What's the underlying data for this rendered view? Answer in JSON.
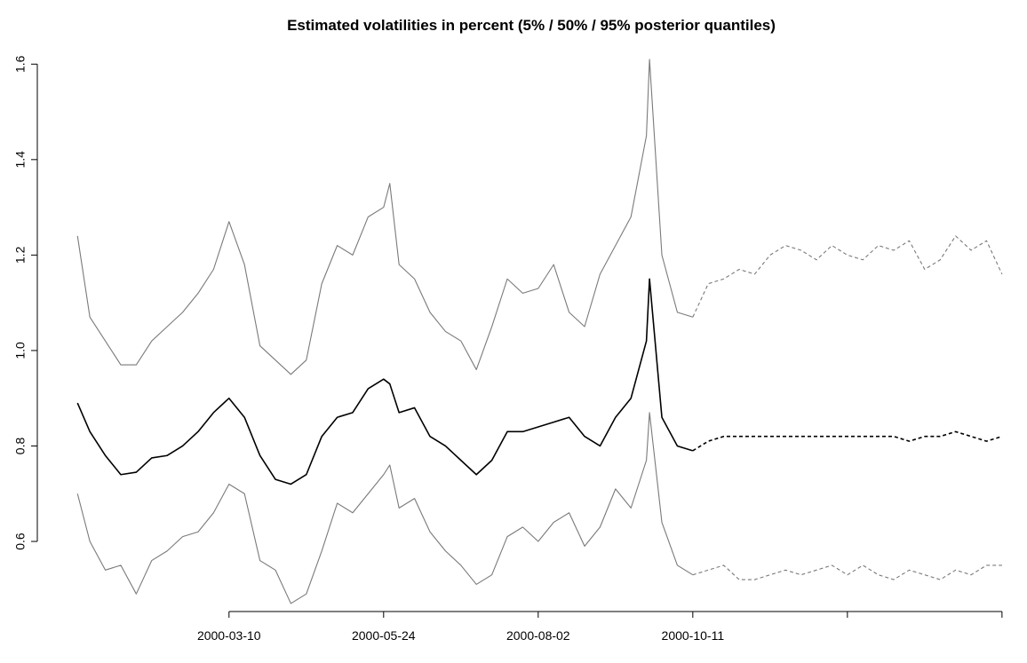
{
  "chart_data": {
    "type": "line",
    "title": "Estimated volatilities in percent (5% / 50% / 95% posterior quantiles)",
    "x": [
      1,
      5,
      10,
      15,
      20,
      25,
      30,
      35,
      40,
      45,
      50,
      55,
      60,
      65,
      70,
      75,
      80,
      85,
      90,
      95,
      100,
      102,
      105,
      110,
      115,
      120,
      125,
      130,
      135,
      140,
      145,
      150,
      155,
      160,
      165,
      170,
      175,
      180,
      185,
      186,
      190,
      195,
      200,
      205,
      210,
      215,
      220,
      225,
      230,
      235,
      240,
      245,
      250,
      255,
      260,
      265,
      270,
      275,
      280,
      285,
      290,
      295,
      300
    ],
    "xlim": [
      -12,
      305.5
    ],
    "xticks": [
      {
        "value": 50,
        "label": "2000-03-10"
      },
      {
        "value": 100,
        "label": "2000-05-24"
      },
      {
        "value": 150,
        "label": "2000-08-02"
      },
      {
        "value": 200,
        "label": "2000-10-11"
      },
      {
        "value": 250,
        "label": null
      },
      {
        "value": 300,
        "label": null
      }
    ],
    "ylim": [
      0.455,
      1.66
    ],
    "yticks": [
      0.6,
      0.8,
      {
        "value": 1,
        "label": "1.0"
      },
      1.2,
      1.4,
      1.6
    ],
    "series": [
      {
        "color": "#7a7a7a",
        "dash": false,
        "values": [
          1.24,
          1.07,
          1.02,
          0.97,
          0.97,
          1.02,
          1.05,
          1.08,
          1.12,
          1.17,
          1.27,
          1.18,
          1.01,
          0.98,
          0.95,
          0.98,
          1.14,
          1.22,
          1.2,
          1.28,
          1.3,
          1.35,
          1.18,
          1.15,
          1.08,
          1.04,
          1.02,
          0.96,
          1.05,
          1.15,
          1.12,
          1.13,
          1.18,
          1.08,
          1.05,
          1.16,
          1.22,
          1.28,
          1.45,
          1.61,
          1.2,
          1.08,
          1.07,
          null,
          null,
          null,
          null,
          null,
          null,
          null,
          null,
          null,
          null,
          null,
          null,
          null,
          null,
          null,
          null,
          null,
          null,
          null,
          null
        ]
      },
      {
        "color": "#000000",
        "dash": false,
        "values": [
          0.89,
          0.83,
          0.78,
          0.74,
          0.745,
          0.775,
          0.78,
          0.8,
          0.83,
          0.87,
          0.9,
          0.86,
          0.78,
          0.73,
          0.72,
          0.74,
          0.82,
          0.86,
          0.87,
          0.92,
          0.94,
          0.93,
          0.87,
          0.88,
          0.82,
          0.8,
          0.77,
          0.74,
          0.77,
          0.83,
          0.83,
          0.84,
          0.85,
          0.86,
          0.82,
          0.8,
          0.86,
          0.9,
          1.02,
          1.15,
          0.86,
          0.8,
          0.79,
          null,
          null,
          null,
          null,
          null,
          null,
          null,
          null,
          null,
          null,
          null,
          null,
          null,
          null,
          null,
          null,
          null,
          null,
          null,
          null
        ]
      },
      {
        "color": "#7a7a7a",
        "dash": false,
        "values": [
          0.7,
          0.6,
          0.54,
          0.55,
          0.49,
          0.56,
          0.58,
          0.61,
          0.62,
          0.66,
          0.72,
          0.7,
          0.56,
          0.54,
          0.47,
          0.49,
          0.58,
          0.68,
          0.66,
          0.7,
          0.74,
          0.76,
          0.67,
          0.69,
          0.62,
          0.58,
          0.55,
          0.51,
          0.53,
          0.61,
          0.63,
          0.6,
          0.64,
          0.66,
          0.59,
          0.63,
          0.71,
          0.67,
          0.77,
          0.87,
          0.64,
          0.55,
          0.53,
          null,
          null,
          null,
          null,
          null,
          null,
          null,
          null,
          null,
          null,
          null,
          null,
          null,
          null,
          null,
          null,
          null,
          null,
          null,
          null
        ]
      },
      {
        "color": "#7a7a7a",
        "dash": true,
        "values": [
          null,
          null,
          null,
          null,
          null,
          null,
          null,
          null,
          null,
          null,
          null,
          null,
          null,
          null,
          null,
          null,
          null,
          null,
          null,
          null,
          null,
          null,
          null,
          null,
          null,
          null,
          null,
          null,
          null,
          null,
          null,
          null,
          null,
          null,
          null,
          null,
          null,
          null,
          null,
          null,
          null,
          null,
          1.07,
          1.14,
          1.15,
          1.17,
          1.16,
          1.2,
          1.22,
          1.21,
          1.19,
          1.22,
          1.2,
          1.19,
          1.22,
          1.21,
          1.23,
          1.17,
          1.19,
          1.24,
          1.21,
          1.23,
          1.16
        ]
      },
      {
        "color": "#000000",
        "dash": true,
        "values": [
          null,
          null,
          null,
          null,
          null,
          null,
          null,
          null,
          null,
          null,
          null,
          null,
          null,
          null,
          null,
          null,
          null,
          null,
          null,
          null,
          null,
          null,
          null,
          null,
          null,
          null,
          null,
          null,
          null,
          null,
          null,
          null,
          null,
          null,
          null,
          null,
          null,
          null,
          null,
          null,
          null,
          null,
          0.79,
          0.81,
          0.82,
          0.82,
          0.82,
          0.82,
          0.82,
          0.82,
          0.82,
          0.82,
          0.82,
          0.82,
          0.82,
          0.82,
          0.81,
          0.82,
          0.82,
          0.83,
          0.82,
          0.81,
          0.82
        ]
      },
      {
        "color": "#7a7a7a",
        "dash": true,
        "values": [
          null,
          null,
          null,
          null,
          null,
          null,
          null,
          null,
          null,
          null,
          null,
          null,
          null,
          null,
          null,
          null,
          null,
          null,
          null,
          null,
          null,
          null,
          null,
          null,
          null,
          null,
          null,
          null,
          null,
          null,
          null,
          null,
          null,
          null,
          null,
          null,
          null,
          null,
          null,
          null,
          null,
          null,
          0.53,
          0.54,
          0.55,
          0.52,
          0.52,
          0.53,
          0.54,
          0.53,
          0.54,
          0.55,
          0.53,
          0.55,
          0.53,
          0.52,
          0.54,
          0.53,
          0.52,
          0.54,
          0.53,
          0.55,
          0.55
        ]
      }
    ]
  }
}
